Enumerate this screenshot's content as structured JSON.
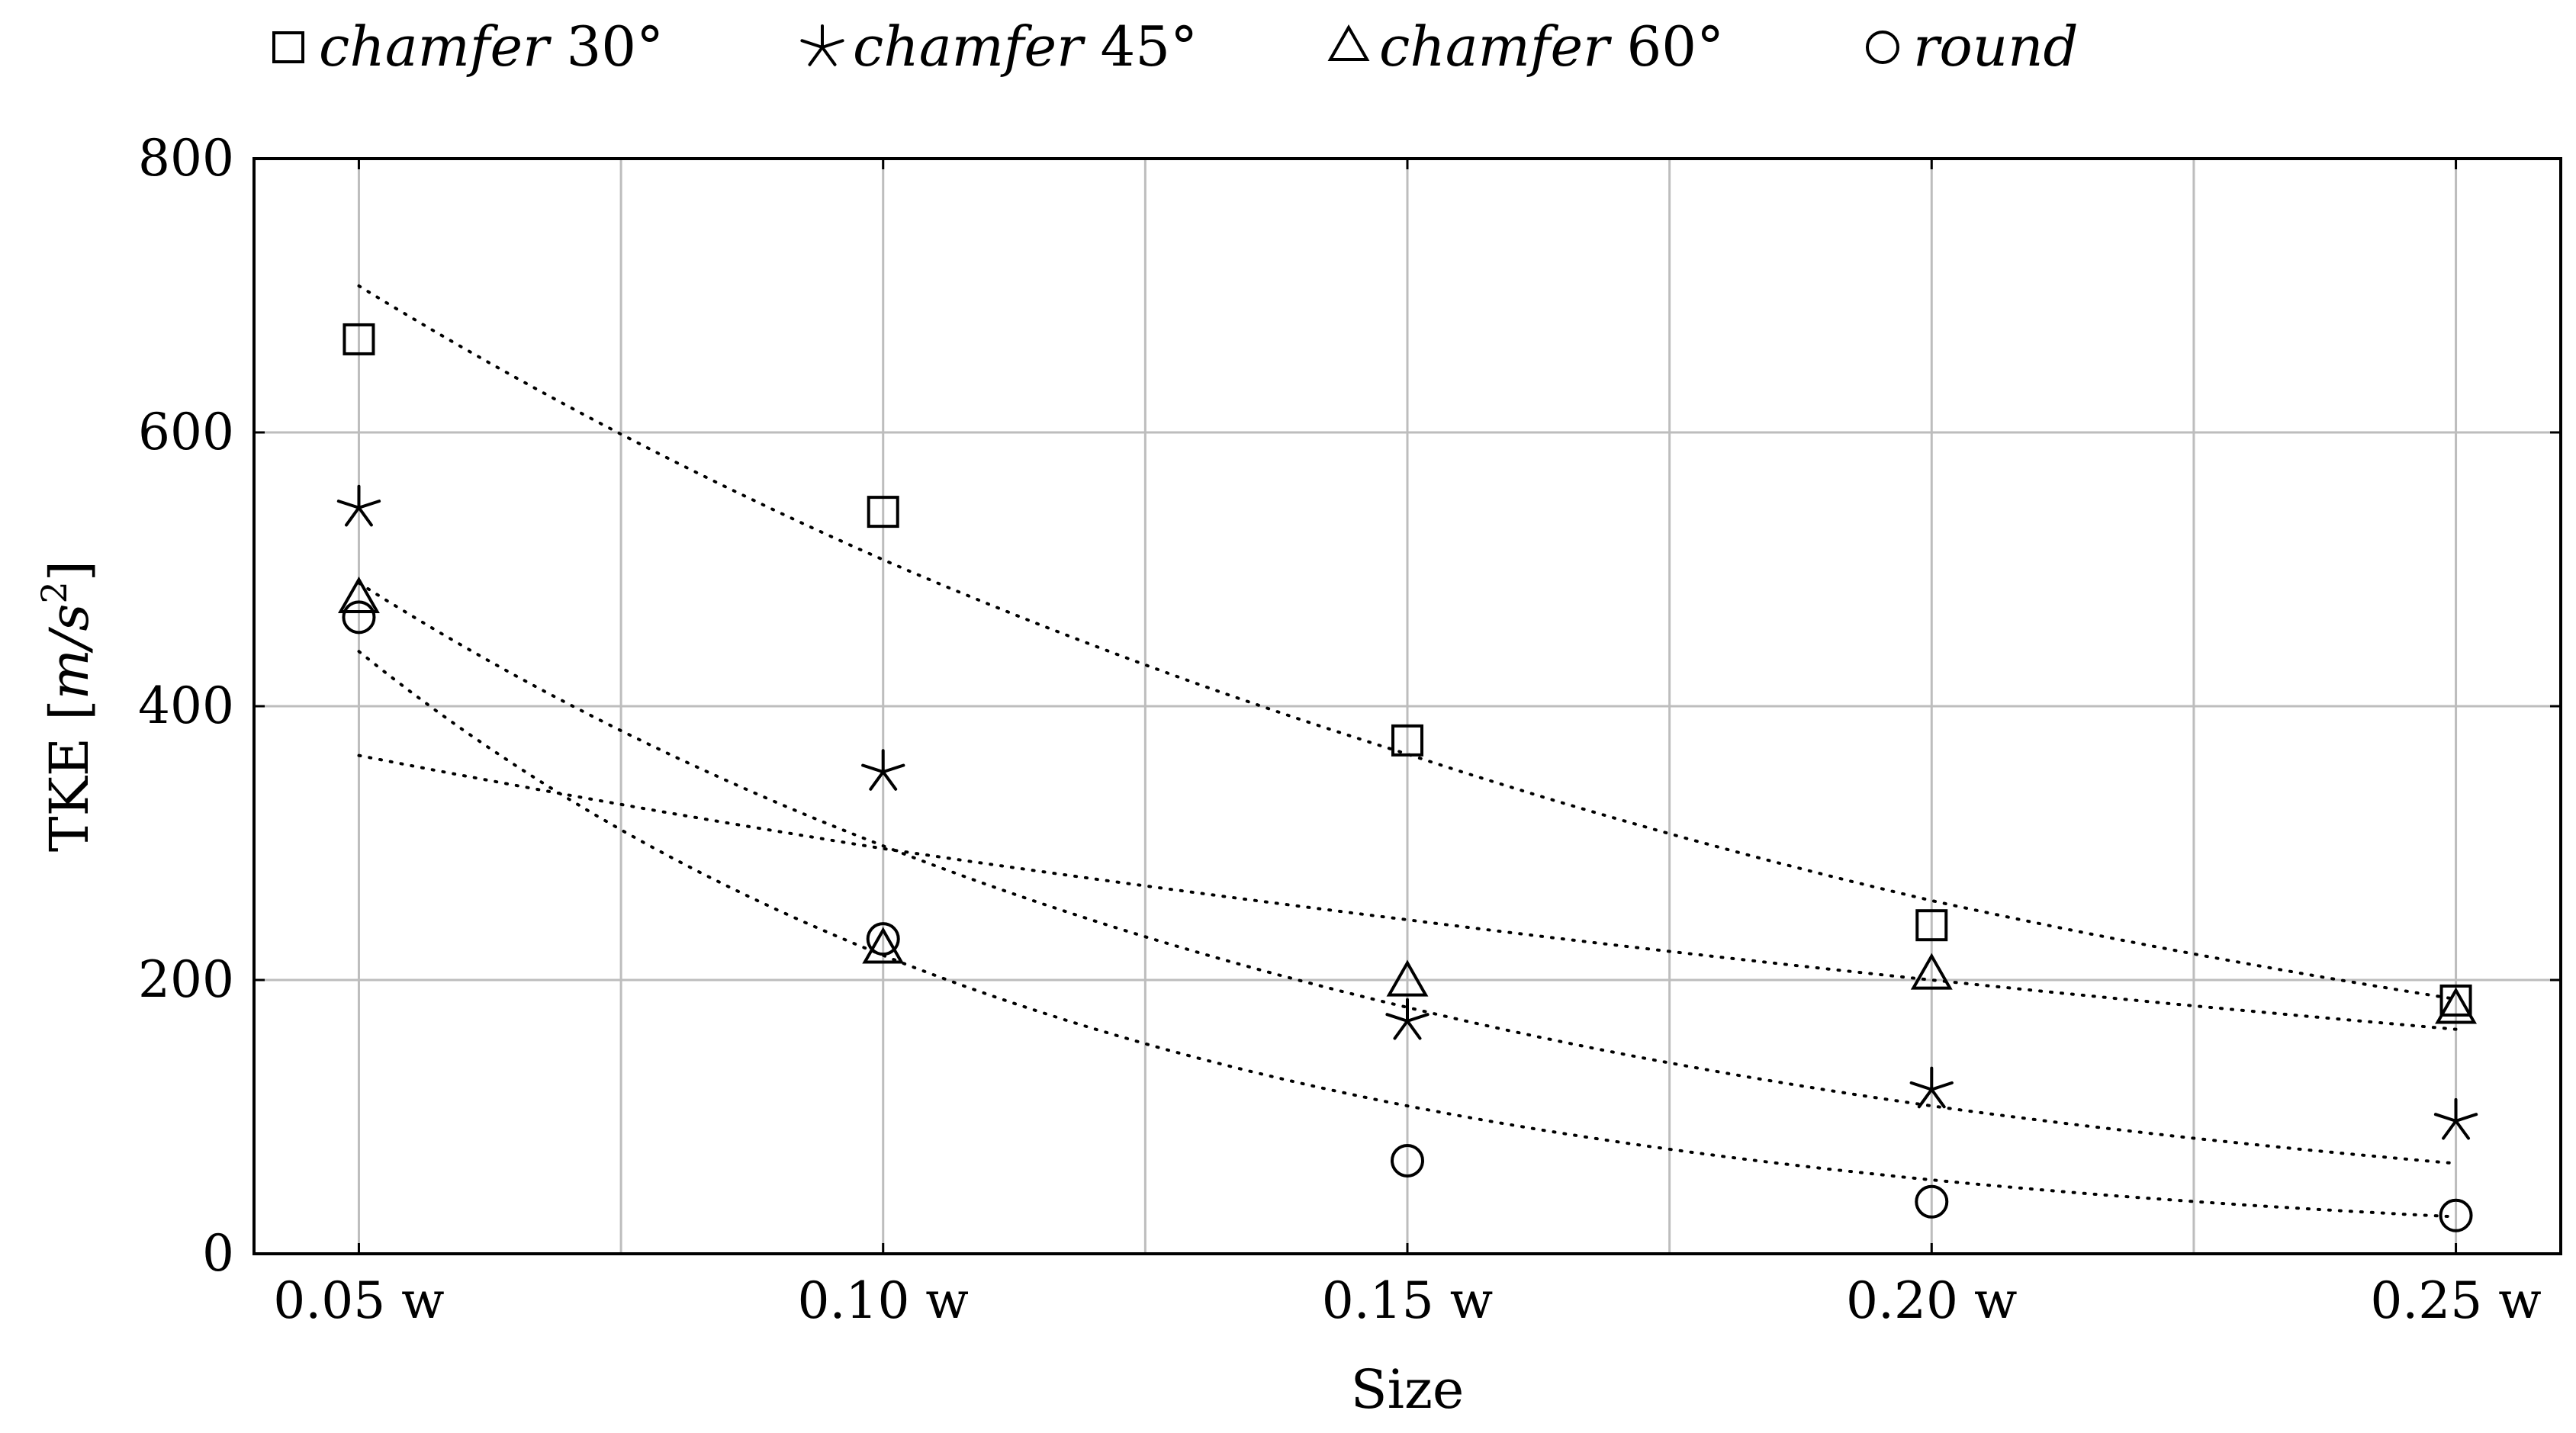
{
  "chart_data": {
    "type": "scatter",
    "xlabel": "Size",
    "ylabel": "TKE [m/s²]",
    "ylabel_parts": {
      "main": "TKE ",
      "unit_open": "[",
      "unit": "m/s",
      "exp": "2",
      "unit_close": "]"
    },
    "x": [
      0.05,
      0.1,
      0.15,
      0.2,
      0.25
    ],
    "x_tick_labels": [
      "0.05 w",
      "0.10 w",
      "0.15 w",
      "0.20 w",
      "0.25 w"
    ],
    "xlim": [
      0.04,
      0.26
    ],
    "ylim": [
      0,
      800
    ],
    "y_ticks": [
      0,
      200,
      400,
      600,
      800
    ],
    "y_tick_labels": [
      "0",
      "200",
      "400",
      "600",
      "800"
    ],
    "grid": true,
    "legend_position": "top",
    "series": [
      {
        "name": "chamfer 30°",
        "name_main": "chamfer",
        "name_suffix": " 30°",
        "marker": "square",
        "values": [
          668,
          542,
          375,
          240,
          185
        ],
        "trend_values": [
          707,
          507,
          365,
          258,
          186
        ]
      },
      {
        "name": "chamfer 45°",
        "name_main": "chamfer",
        "name_suffix": " 45°",
        "marker": "star",
        "values": [
          545,
          352,
          170,
          120,
          97
        ],
        "trend_values": [
          490,
          298,
          180,
          108,
          66
        ]
      },
      {
        "name": "chamfer 60°",
        "name_main": "chamfer",
        "name_suffix": " 60°",
        "marker": "triangle",
        "values": [
          478,
          222,
          198,
          203,
          178
        ],
        "trend_values": [
          364,
          296,
          244,
          200,
          164
        ]
      },
      {
        "name": "round",
        "name_main": "round",
        "name_suffix": "",
        "marker": "circle",
        "values": [
          465,
          230,
          68,
          38,
          28
        ],
        "trend_values": [
          440,
          218,
          108,
          54,
          27
        ]
      }
    ]
  }
}
